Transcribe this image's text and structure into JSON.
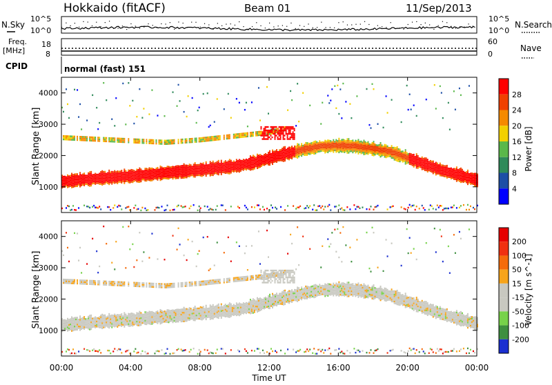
{
  "header": {
    "radar": "Hokkaido (fitACF)",
    "beam": "Beam 01",
    "date": "11/Sep/2013"
  },
  "top_panels": {
    "nsky_label": "N.Sky",
    "nsearch_label": "N.Search",
    "noise_ticks": [
      "10^5",
      "10^0"
    ],
    "freq_label_1": "Freq.",
    "freq_label_2": "[MHz]",
    "freq_ticks": [
      "18",
      "8"
    ],
    "nave_label": "Nave",
    "nave_ticks": [
      "60",
      "0"
    ],
    "cpid_label": "CPID",
    "cpid_value": "normal (fast) 151"
  },
  "time_axis": {
    "label": "Time UT",
    "ticks": [
      "00:00",
      "04:00",
      "08:00",
      "12:00",
      "16:00",
      "20:00",
      "00:00"
    ]
  },
  "range_ticks": [
    "1000",
    "2000",
    "3000",
    "4000"
  ],
  "chart_data": [
    {
      "type": "heatmap",
      "title": "Power",
      "xlabel": "Time UT",
      "ylabel": "Slant Range [km]",
      "xlim": [
        "00:00",
        "24:00"
      ],
      "ylim": [
        180,
        4500
      ],
      "colorbar": {
        "label": "Power [dB]",
        "ticks": [
          "4",
          "8",
          "12",
          "16",
          "20",
          "24",
          "28"
        ],
        "colors": [
          "#0000ff",
          "#1d4fa6",
          "#2f8a5a",
          "#5ab84a",
          "#f2d000",
          "#f58a00",
          "#f04000",
          "#ff0000"
        ]
      },
      "bands": [
        {
          "name": "main echo",
          "points": [
            [
              0,
              1150
            ],
            [
              2,
              1250
            ],
            [
              4,
              1330
            ],
            [
              6,
              1430
            ],
            [
              8,
              1530
            ],
            [
              10,
              1640
            ],
            [
              11,
              1750
            ],
            [
              12,
              1900
            ],
            [
              13,
              2050
            ],
            [
              14,
              2180
            ],
            [
              15,
              2280
            ],
            [
              16,
              2300
            ],
            [
              17,
              2270
            ],
            [
              18,
              2200
            ],
            [
              19,
              2100
            ],
            [
              20,
              1900
            ],
            [
              21,
              1700
            ],
            [
              22,
              1500
            ],
            [
              24,
              1200
            ]
          ],
          "width_km": 380
        },
        {
          "name": "upper band",
          "points": [
            [
              0,
              2550
            ],
            [
              2,
              2500
            ],
            [
              4,
              2450
            ],
            [
              6,
              2400
            ],
            [
              8,
              2480
            ],
            [
              10,
              2600
            ],
            [
              12,
              2720
            ],
            [
              13,
              2850
            ]
          ],
          "width_km": 120
        }
      ]
    },
    {
      "type": "heatmap",
      "title": "Velocity",
      "xlabel": "Time UT",
      "ylabel": "Slant Range [km]",
      "xlim": [
        "00:00",
        "24:00"
      ],
      "ylim": [
        180,
        4500
      ],
      "colorbar": {
        "label": "Velocity [m s^-1]",
        "ticks": [
          "200",
          "100",
          "50",
          "15",
          "-15",
          "-50",
          "-100",
          "-200"
        ],
        "colors": [
          "#1a2fd0",
          "#3e8f3f",
          "#77d24a",
          "#c8c8c0",
          "#c8c8c0",
          "#f7a41a",
          "#f56b0a",
          "#f03010",
          "#e60000"
        ]
      }
    }
  ]
}
